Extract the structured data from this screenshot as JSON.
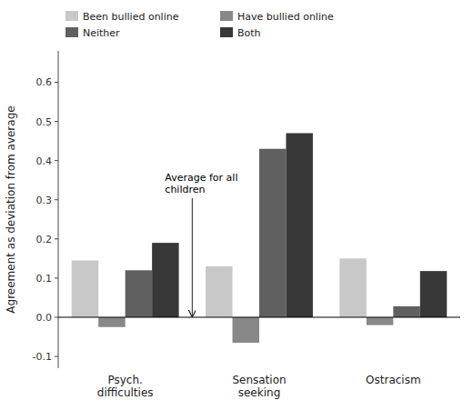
{
  "chart_data": {
    "type": "bar",
    "categories": [
      "Psych.\ndifficulties",
      "Sensation\nseeking",
      "Ostracism"
    ],
    "series": [
      {
        "name": "Been bullied online",
        "color": "#c8c8c8",
        "values": [
          0.145,
          0.13,
          0.15
        ]
      },
      {
        "name": "Have bullied online",
        "color": "#888888",
        "values": [
          -0.025,
          -0.065,
          -0.02
        ]
      },
      {
        "name": "Neither",
        "color": "#606060",
        "values": [
          0.12,
          0.43,
          0.028
        ]
      },
      {
        "name": "Both",
        "color": "#383838",
        "values": [
          0.19,
          0.47,
          0.118
        ]
      }
    ],
    "y_label": "Agreement as deviation from average",
    "ylim": [
      -0.13,
      0.68
    ],
    "yticks": [
      -0.1,
      {
        "value": 0.0,
        "label": "0.0"
      },
      0.1,
      0.2,
      0.3,
      0.4,
      0.5,
      0.6
    ],
    "annotation": "Average for all\nchildren",
    "legend": "upper left",
    "grid": false
  }
}
